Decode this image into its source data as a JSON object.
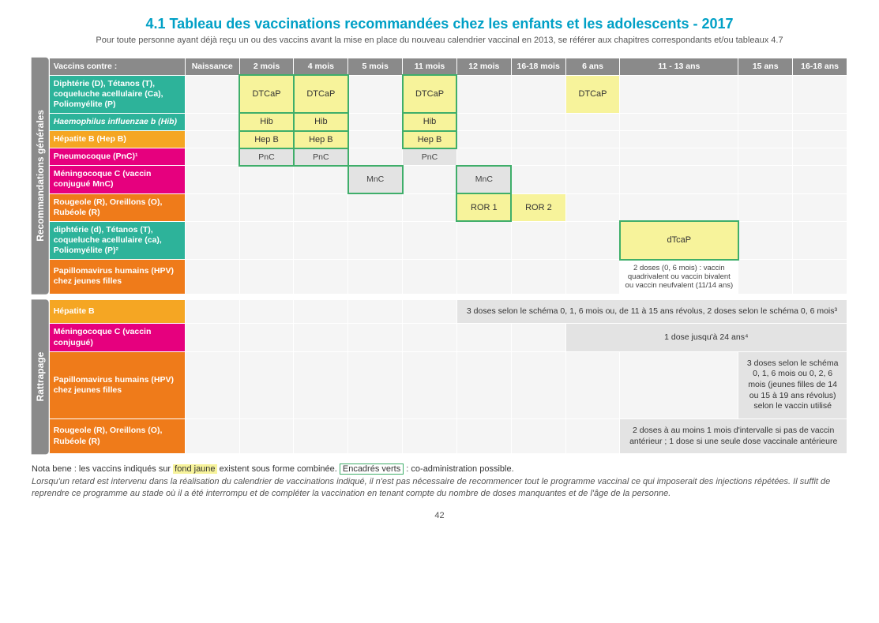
{
  "title": "4.1  Tableau des vaccinations recommandées chez les enfants et les adolescents - 2017",
  "subtitle": "Pour toute personne ayant déjà reçu un ou des vaccins avant la mise en place du nouveau calendrier vaccinal en 2013, se référer aux chapitres correspondants et/ou tableaux 4.7",
  "colors": {
    "header_grey": "#8a8a8a",
    "row_teal": "#2db39a",
    "row_orange": "#f5a623",
    "row_magenta": "#e6007e",
    "row_darkorange": "#ef7b1a",
    "dose_yellow": "#f7f39b",
    "border_green": "#3fae6a",
    "cell_grey": "#e3e3e3",
    "cell_empty": "#f5f5f5"
  },
  "column_headers": [
    "Vaccins contre :",
    "Naissance",
    "2 mois",
    "4 mois",
    "5 mois",
    "11 mois",
    "12 mois",
    "16-18 mois",
    "6 ans",
    "11 - 13 ans",
    "15 ans",
    "16-18 ans"
  ],
  "sections": {
    "general": {
      "tab_label": "Recommandations générales",
      "rows": [
        {
          "label": "Diphtérie (D), Tétanos (T), coqueluche acellulaire (Ca), Poliomyélite (P)",
          "color": "row_teal",
          "cells": [
            {
              "t": "empty"
            },
            {
              "t": "dose",
              "v": "DTCaP",
              "g": true
            },
            {
              "t": "dose",
              "v": "DTCaP",
              "g": true
            },
            {
              "t": "empty"
            },
            {
              "t": "dose",
              "v": "DTCaP",
              "g": true
            },
            {
              "t": "empty"
            },
            {
              "t": "empty"
            },
            {
              "t": "dose",
              "v": "DTCaP"
            },
            {
              "t": "empty"
            },
            {
              "t": "empty"
            },
            {
              "t": "empty"
            }
          ]
        },
        {
          "label": "Haemophilus influenzae b (Hib)",
          "color": "row_teal",
          "italic": true,
          "cells": [
            {
              "t": "empty"
            },
            {
              "t": "dose",
              "v": "Hib",
              "g": true
            },
            {
              "t": "dose",
              "v": "Hib",
              "g": true
            },
            {
              "t": "empty"
            },
            {
              "t": "dose",
              "v": "Hib",
              "g": true
            },
            {
              "t": "empty"
            },
            {
              "t": "empty"
            },
            {
              "t": "empty"
            },
            {
              "t": "empty"
            },
            {
              "t": "empty"
            },
            {
              "t": "empty"
            }
          ]
        },
        {
          "label": "Hépatite B (Hep B)",
          "color": "row_orange",
          "cells": [
            {
              "t": "empty"
            },
            {
              "t": "dose",
              "v": "Hep B",
              "g": true
            },
            {
              "t": "dose",
              "v": "Hep B",
              "g": true
            },
            {
              "t": "empty"
            },
            {
              "t": "dose",
              "v": "Hep B",
              "g": true
            },
            {
              "t": "empty"
            },
            {
              "t": "empty"
            },
            {
              "t": "empty"
            },
            {
              "t": "empty"
            },
            {
              "t": "empty"
            },
            {
              "t": "empty"
            }
          ]
        },
        {
          "label": "Pneumocoque (PnC)¹",
          "color": "row_magenta",
          "cells": [
            {
              "t": "empty"
            },
            {
              "t": "grey",
              "v": "PnC",
              "g": true
            },
            {
              "t": "grey",
              "v": "PnC",
              "g": true
            },
            {
              "t": "empty"
            },
            {
              "t": "grey",
              "v": "PnC"
            },
            {
              "t": "empty"
            },
            {
              "t": "empty"
            },
            {
              "t": "empty"
            },
            {
              "t": "empty"
            },
            {
              "t": "empty"
            },
            {
              "t": "empty"
            }
          ]
        },
        {
          "label": "Méningocoque C (vaccin conjugué  MnC)",
          "color": "row_magenta",
          "cells": [
            {
              "t": "empty"
            },
            {
              "t": "empty"
            },
            {
              "t": "empty"
            },
            {
              "t": "grey",
              "v": "MnC",
              "g": true
            },
            {
              "t": "empty"
            },
            {
              "t": "grey",
              "v": "MnC",
              "g": true
            },
            {
              "t": "empty"
            },
            {
              "t": "empty"
            },
            {
              "t": "empty"
            },
            {
              "t": "empty"
            },
            {
              "t": "empty"
            }
          ]
        },
        {
          "label": "Rougeole (R), Oreillons (O), Rubéole (R)",
          "color": "row_darkorange",
          "cells": [
            {
              "t": "empty"
            },
            {
              "t": "empty"
            },
            {
              "t": "empty"
            },
            {
              "t": "empty"
            },
            {
              "t": "empty"
            },
            {
              "t": "dose",
              "v": "ROR 1",
              "g": true
            },
            {
              "t": "dose",
              "v": "ROR 2"
            },
            {
              "t": "empty"
            },
            {
              "t": "empty"
            },
            {
              "t": "empty"
            },
            {
              "t": "empty"
            }
          ]
        },
        {
          "label": "diphtérie (d), Tétanos (T), coqueluche acellulaire (ca), Poliomyélite (P)²",
          "color": "row_teal",
          "cells": [
            {
              "t": "empty"
            },
            {
              "t": "empty"
            },
            {
              "t": "empty"
            },
            {
              "t": "empty"
            },
            {
              "t": "empty"
            },
            {
              "t": "empty"
            },
            {
              "t": "empty"
            },
            {
              "t": "empty"
            },
            {
              "t": "dose",
              "v": "dTcaP",
              "g": true
            },
            {
              "t": "empty"
            },
            {
              "t": "empty"
            }
          ]
        },
        {
          "label": "Papillomavirus humains (HPV) chez jeunes filles",
          "color": "row_darkorange",
          "cells": [
            {
              "t": "empty"
            },
            {
              "t": "empty"
            },
            {
              "t": "empty"
            },
            {
              "t": "empty"
            },
            {
              "t": "empty"
            },
            {
              "t": "empty"
            },
            {
              "t": "empty"
            },
            {
              "t": "empty"
            },
            {
              "t": "hpv",
              "v": "2 doses (0, 6 mois) : vaccin quadrivalent ou vaccin bivalent ou vaccin neufvalent (11/14 ans)"
            },
            {
              "t": "empty"
            },
            {
              "t": "empty"
            }
          ]
        }
      ]
    },
    "rattrapage": {
      "tab_label": "Rattrapage",
      "rows": [
        {
          "label": "Hépatite B",
          "color": "row_orange",
          "span": {
            "from": 5,
            "text": "3 doses selon le schéma 0, 1, 6 mois ou, de 11 à 15 ans révolus, 2 doses selon le schéma 0, 6 mois³"
          }
        },
        {
          "label": "Méningocoque C (vaccin conjugué)",
          "color": "row_magenta",
          "span": {
            "from": 7,
            "text": "1 dose jusqu'à 24 ans⁴"
          }
        },
        {
          "label": "Papillomavirus humains (HPV) chez jeunes filles",
          "color": "row_darkorange",
          "span": {
            "from": 9,
            "text": "3 doses selon le schéma 0, 1, 6 mois ou 0, 2, 6 mois (jeunes filles de 14 ou 15 à 19 ans révolus) selon le vaccin utilisé"
          }
        },
        {
          "label": "Rougeole (R), Oreillons (O), Rubéole (R)",
          "color": "row_darkorange",
          "span": {
            "from": 8,
            "text": "2 doses à au moins 1 mois d'intervalle si pas de vaccin antérieur ; 1 dose si une seule dose vaccinale antérieure"
          }
        }
      ]
    }
  },
  "footnotes": {
    "line1_pre": "Nota bene : les vaccins indiqués sur ",
    "line1_yellow": "fond jaune",
    "line1_mid": " existent sous forme combinée. ",
    "line1_green": "Encadrés verts",
    "line1_post": " : co-administration possible.",
    "line2": "Lorsqu'un retard est intervenu dans la réalisation du calendrier de vaccinations indiqué, il n'est pas nécessaire de recommencer tout le programme vaccinal ce qui imposerait des injections répétées. Il suffit de reprendre ce programme au stade où il a été interrompu et de compléter la vaccination en tenant compte du nombre de doses manquantes et de l'âge de la personne."
  },
  "page_number": "42"
}
